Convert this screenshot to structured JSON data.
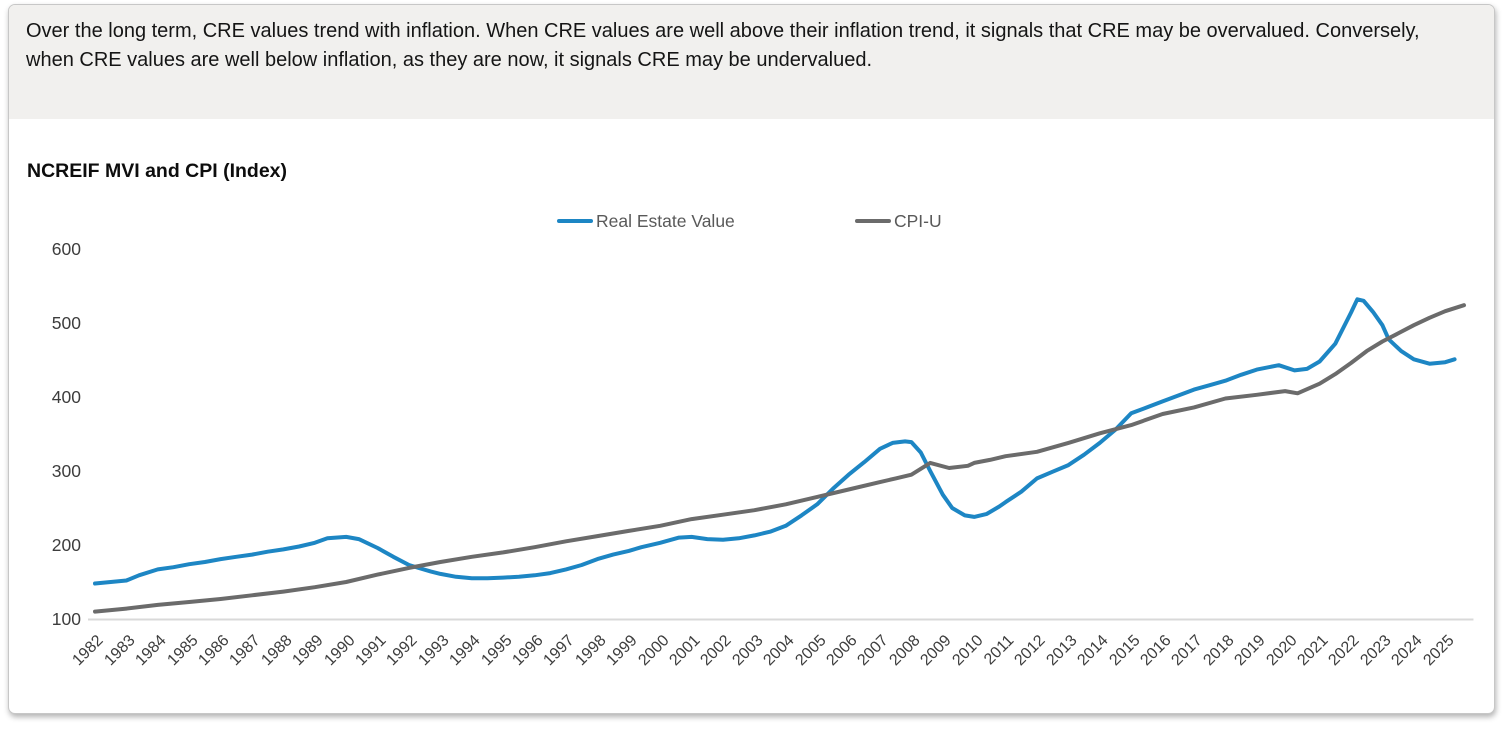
{
  "card": {
    "summary_text": "Over the long term, CRE values trend with inflation. When CRE values are well above their inflation trend, it signals that CRE may be overvalued. Conversely, when CRE values are well below inflation, as they are now, it signals CRE may be undervalued."
  },
  "colors": {
    "real_estate_line": "#1d86c4",
    "cpi_line": "#6b6b6b",
    "axis_line": "#d9d9d9",
    "summary_background": "#f1f0ee"
  },
  "chart_data": {
    "type": "line",
    "title": "NCREIF MVI and CPI (Index)",
    "xlabel": "",
    "ylabel": "",
    "xlim": [
      1982,
      2025.9
    ],
    "ylim": [
      100,
      600
    ],
    "grid": false,
    "legend_position": "top-center",
    "y_ticks": [
      600,
      500,
      400,
      300,
      200,
      100
    ],
    "x_ticks": [
      1982,
      1983,
      1984,
      1985,
      1986,
      1987,
      1988,
      1989,
      1990,
      1991,
      1992,
      1993,
      1994,
      1995,
      1996,
      1997,
      1998,
      1999,
      2000,
      2001,
      2002,
      2003,
      2004,
      2005,
      2006,
      2007,
      2008,
      2009,
      2010,
      2011,
      2012,
      2013,
      2014,
      2015,
      2016,
      2017,
      2018,
      2019,
      2020,
      2021,
      2022,
      2023,
      2024,
      2025
    ],
    "series": [
      {
        "name": "Real Estate Value",
        "color": "#1d86c4",
        "points": [
          [
            1982,
            148
          ],
          [
            1982.5,
            150
          ],
          [
            1983,
            152
          ],
          [
            1983.4,
            159
          ],
          [
            1984,
            167
          ],
          [
            1984.5,
            170
          ],
          [
            1985,
            174
          ],
          [
            1985.5,
            177
          ],
          [
            1986,
            181
          ],
          [
            1986.5,
            184
          ],
          [
            1987,
            187
          ],
          [
            1987.5,
            191
          ],
          [
            1988,
            194
          ],
          [
            1988.5,
            198
          ],
          [
            1989,
            203
          ],
          [
            1989.4,
            209
          ],
          [
            1990,
            211
          ],
          [
            1990.4,
            208
          ],
          [
            1991,
            196
          ],
          [
            1991.5,
            184
          ],
          [
            1992,
            173
          ],
          [
            1992.3,
            169
          ],
          [
            1992.7,
            164
          ],
          [
            1993,
            161
          ],
          [
            1993.5,
            157
          ],
          [
            1994,
            155
          ],
          [
            1994.5,
            155
          ],
          [
            1995,
            156
          ],
          [
            1995.5,
            157
          ],
          [
            1996,
            159
          ],
          [
            1996.5,
            162
          ],
          [
            1997,
            167
          ],
          [
            1997.5,
            173
          ],
          [
            1998,
            181
          ],
          [
            1998.5,
            187
          ],
          [
            1999,
            192
          ],
          [
            1999.4,
            197
          ],
          [
            2000,
            203
          ],
          [
            2000.6,
            210
          ],
          [
            2001,
            211
          ],
          [
            2001.5,
            208
          ],
          [
            2002,
            207
          ],
          [
            2002.5,
            209
          ],
          [
            2003,
            213
          ],
          [
            2003.5,
            218
          ],
          [
            2004,
            226
          ],
          [
            2004.5,
            240
          ],
          [
            2005,
            255
          ],
          [
            2005.5,
            276
          ],
          [
            2006,
            295
          ],
          [
            2006.5,
            312
          ],
          [
            2007,
            330
          ],
          [
            2007.4,
            338
          ],
          [
            2007.8,
            340
          ],
          [
            2008,
            339
          ],
          [
            2008.3,
            325
          ],
          [
            2008.6,
            300
          ],
          [
            2009,
            268
          ],
          [
            2009.3,
            250
          ],
          [
            2009.7,
            240
          ],
          [
            2010,
            238
          ],
          [
            2010.4,
            242
          ],
          [
            2010.8,
            252
          ],
          [
            2011,
            258
          ],
          [
            2011.5,
            272
          ],
          [
            2012,
            290
          ],
          [
            2012.5,
            299
          ],
          [
            2013,
            308
          ],
          [
            2013.5,
            322
          ],
          [
            2014,
            338
          ],
          [
            2014.5,
            356
          ],
          [
            2015,
            378
          ],
          [
            2015.5,
            386
          ],
          [
            2016,
            394
          ],
          [
            2016.5,
            402
          ],
          [
            2017,
            410
          ],
          [
            2017.5,
            416
          ],
          [
            2018,
            422
          ],
          [
            2018.5,
            430
          ],
          [
            2019,
            437
          ],
          [
            2019.7,
            443
          ],
          [
            2020.2,
            436
          ],
          [
            2020.6,
            438
          ],
          [
            2021,
            448
          ],
          [
            2021.5,
            472
          ],
          [
            2022,
            514
          ],
          [
            2022.2,
            532
          ],
          [
            2022.4,
            530
          ],
          [
            2022.7,
            515
          ],
          [
            2023,
            497
          ],
          [
            2023.2,
            478
          ],
          [
            2023.6,
            462
          ],
          [
            2024,
            451
          ],
          [
            2024.5,
            445
          ],
          [
            2025,
            447
          ],
          [
            2025.3,
            451
          ]
        ]
      },
      {
        "name": "CPI-U",
        "color": "#6b6b6b",
        "points": [
          [
            1982,
            110
          ],
          [
            1983,
            114
          ],
          [
            1984,
            119
          ],
          [
            1985,
            123
          ],
          [
            1986,
            127
          ],
          [
            1987,
            132
          ],
          [
            1988,
            137
          ],
          [
            1989,
            143
          ],
          [
            1990,
            150
          ],
          [
            1991,
            160
          ],
          [
            1992,
            169
          ],
          [
            1993,
            177
          ],
          [
            1994,
            184
          ],
          [
            1995,
            190
          ],
          [
            1996,
            197
          ],
          [
            1997,
            205
          ],
          [
            1998,
            212
          ],
          [
            1999,
            219
          ],
          [
            2000,
            226
          ],
          [
            2001,
            235
          ],
          [
            2002,
            241
          ],
          [
            2003,
            247
          ],
          [
            2004,
            255
          ],
          [
            2005,
            265
          ],
          [
            2006,
            275
          ],
          [
            2007,
            285
          ],
          [
            2007.5,
            290
          ],
          [
            2008,
            295
          ],
          [
            2008.6,
            311
          ],
          [
            2009.2,
            304
          ],
          [
            2009.8,
            307
          ],
          [
            2010,
            311
          ],
          [
            2010.5,
            315
          ],
          [
            2011,
            320
          ],
          [
            2012,
            326
          ],
          [
            2013,
            338
          ],
          [
            2014,
            351
          ],
          [
            2015,
            362
          ],
          [
            2016,
            377
          ],
          [
            2017,
            386
          ],
          [
            2018,
            398
          ],
          [
            2019,
            403
          ],
          [
            2019.9,
            408
          ],
          [
            2020.3,
            405
          ],
          [
            2021,
            418
          ],
          [
            2021.5,
            431
          ],
          [
            2022,
            446
          ],
          [
            2022.5,
            462
          ],
          [
            2023,
            475
          ],
          [
            2023.5,
            486
          ],
          [
            2024,
            497
          ],
          [
            2024.5,
            507
          ],
          [
            2025,
            516
          ],
          [
            2025.6,
            524
          ]
        ]
      }
    ]
  }
}
